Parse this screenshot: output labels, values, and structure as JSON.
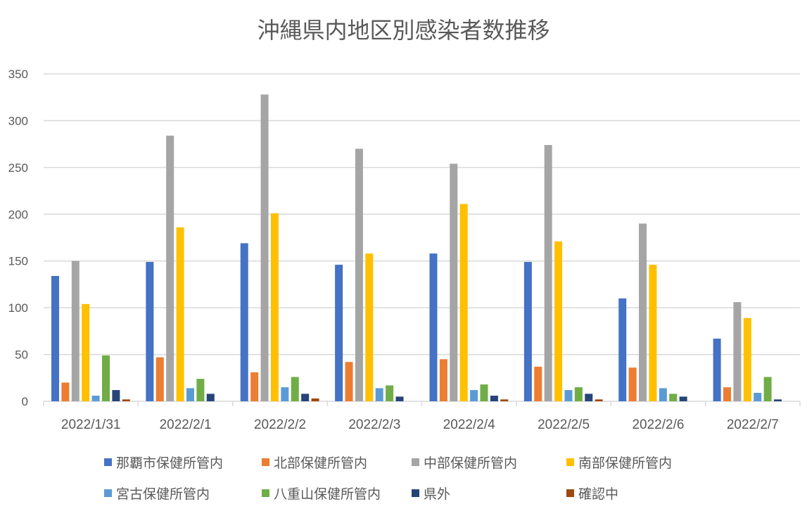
{
  "chart_data": {
    "type": "bar",
    "title": "沖縄県内地区別感染者数推移",
    "xlabel": "",
    "ylabel": "",
    "ylim": [
      0,
      350
    ],
    "yticks": [
      0,
      50,
      100,
      150,
      200,
      250,
      300,
      350
    ],
    "grid": true,
    "legend_position": "bottom",
    "categories": [
      "2022/1/31",
      "2022/2/1",
      "2022/2/2",
      "2022/2/3",
      "2022/2/4",
      "2022/2/5",
      "2022/2/6",
      "2022/2/7"
    ],
    "series": [
      {
        "name": "那覇市保健所管内",
        "color": "#4472C4",
        "values": [
          134,
          149,
          169,
          146,
          158,
          149,
          110,
          67
        ]
      },
      {
        "name": "北部保健所管内",
        "color": "#ED7D31",
        "values": [
          20,
          47,
          31,
          42,
          45,
          37,
          36,
          15
        ]
      },
      {
        "name": "中部保健所管内",
        "color": "#A5A5A5",
        "values": [
          150,
          284,
          328,
          270,
          254,
          274,
          190,
          106
        ]
      },
      {
        "name": "南部保健所管内",
        "color": "#FFC000",
        "values": [
          104,
          186,
          201,
          158,
          211,
          171,
          146,
          89
        ]
      },
      {
        "name": "宮古保健所管内",
        "color": "#5B9BD5",
        "values": [
          6,
          14,
          15,
          14,
          12,
          12,
          14,
          9
        ]
      },
      {
        "name": "八重山保健所管内",
        "color": "#70AD47",
        "values": [
          49,
          24,
          26,
          17,
          18,
          15,
          8,
          26
        ]
      },
      {
        "name": "県外",
        "color": "#264478",
        "values": [
          12,
          8,
          8,
          5,
          6,
          8,
          5,
          2
        ]
      },
      {
        "name": "確認中",
        "color": "#9E480E",
        "values": [
          2,
          0,
          3,
          0,
          2,
          2,
          0,
          0
        ]
      }
    ]
  }
}
